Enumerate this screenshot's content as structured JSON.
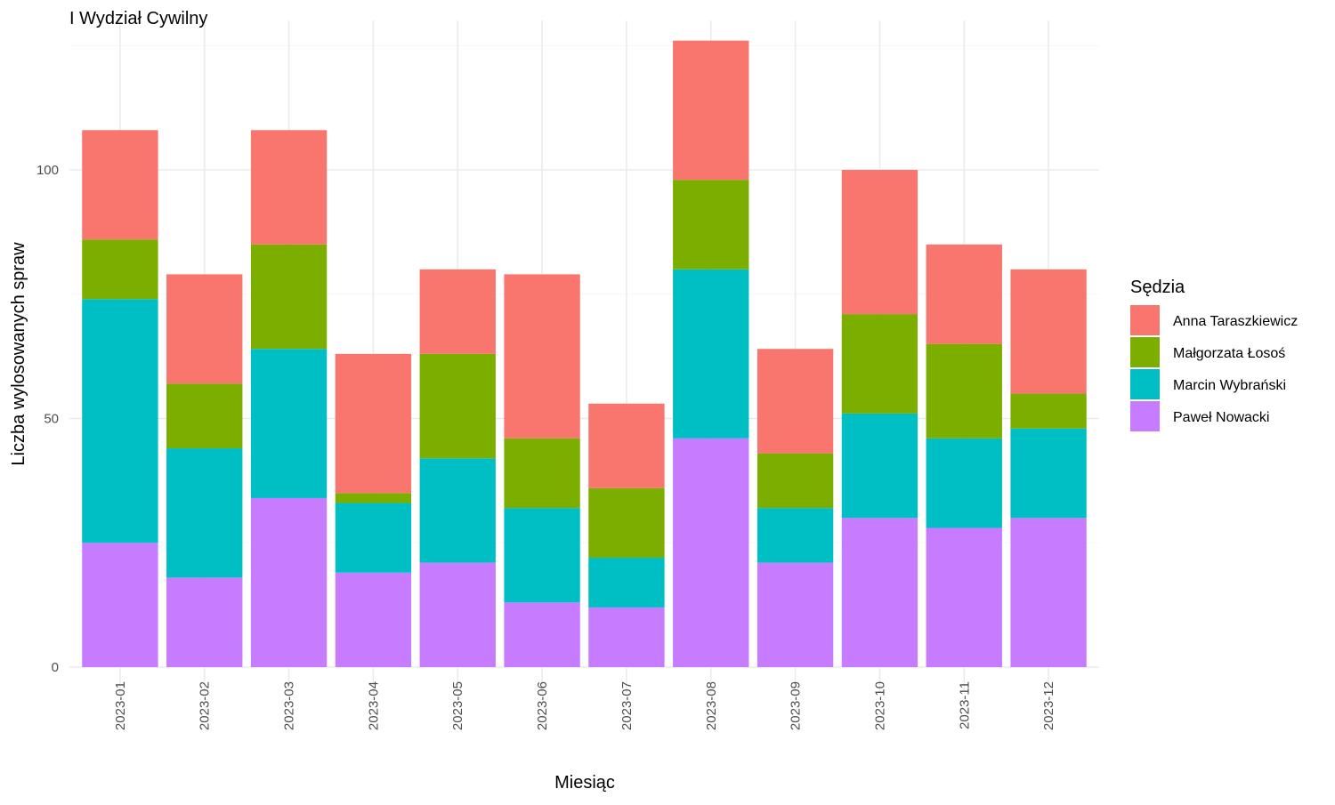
{
  "chart_data": {
    "type": "bar",
    "stacked": true,
    "title": "I Wydział Cywilny",
    "xlabel": "Miesiąc",
    "ylabel": "Liczba wylosowanych spraw",
    "ylim": [
      0,
      130
    ],
    "yticks": [
      0,
      50,
      100
    ],
    "grid": true,
    "legend": {
      "title": "Sędzia",
      "position": "right"
    },
    "categories": [
      "2023-01",
      "2023-02",
      "2023-03",
      "2023-04",
      "2023-05",
      "2023-06",
      "2023-07",
      "2023-08",
      "2023-09",
      "2023-10",
      "2023-11",
      "2023-12"
    ],
    "series": [
      {
        "name": "Paweł Nowacki",
        "color": "#C77CFF",
        "values": [
          25,
          18,
          34,
          19,
          21,
          13,
          12,
          46,
          21,
          30,
          28,
          30
        ]
      },
      {
        "name": "Marcin Wybrański",
        "color": "#00BFC4",
        "values": [
          49,
          26,
          30,
          14,
          21,
          19,
          10,
          34,
          11,
          21,
          18,
          18
        ]
      },
      {
        "name": "Małgorzata Łosoś",
        "color": "#7CAE00",
        "values": [
          12,
          13,
          21,
          2,
          21,
          14,
          14,
          18,
          11,
          20,
          19,
          7
        ]
      },
      {
        "name": "Anna Taraszkiewicz",
        "color": "#F8766D",
        "values": [
          22,
          22,
          23,
          28,
          17,
          33,
          17,
          28,
          21,
          29,
          20,
          25
        ]
      }
    ],
    "legend_order": [
      "Anna Taraszkiewicz",
      "Małgorzata Łosoś",
      "Marcin Wybrański",
      "Paweł Nowacki"
    ]
  }
}
